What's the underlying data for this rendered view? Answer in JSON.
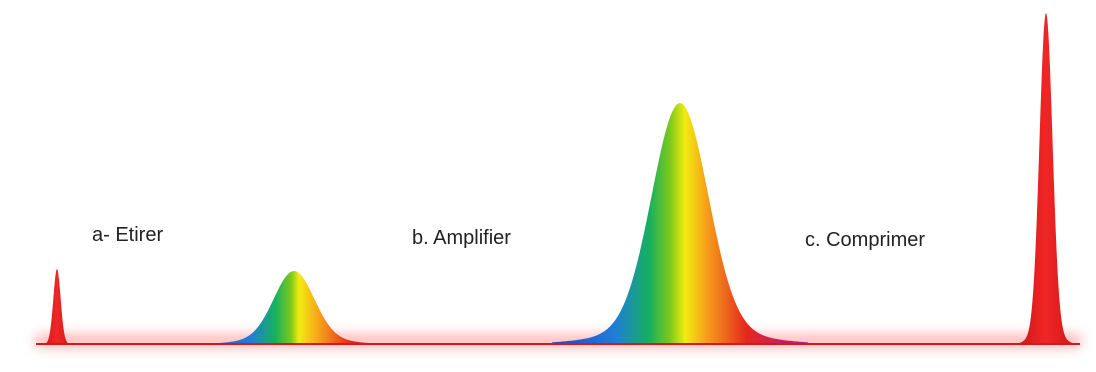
{
  "steps": [
    {
      "id": "a",
      "label": "a- Etirer"
    },
    {
      "id": "b",
      "label": "b. Amplifier"
    },
    {
      "id": "c",
      "label": "c. Comprimer"
    }
  ],
  "colors": {
    "baseline": "#d81818",
    "glow": "#ff8a8a",
    "pulse_red": "#e81e1e",
    "spectrum": [
      "#2a3fc8",
      "#1f7fd4",
      "#16b060",
      "#7cc81c",
      "#f2ec10",
      "#f6a21a",
      "#e4281e",
      "#b01890"
    ]
  },
  "icons": {
    "input_pulse": "short-red-pulse",
    "stretched_pulse": "rainbow-stretched-pulse",
    "amplified_pulse": "rainbow-amplified-pulse",
    "output_pulse": "tall-red-compressed-pulse"
  }
}
